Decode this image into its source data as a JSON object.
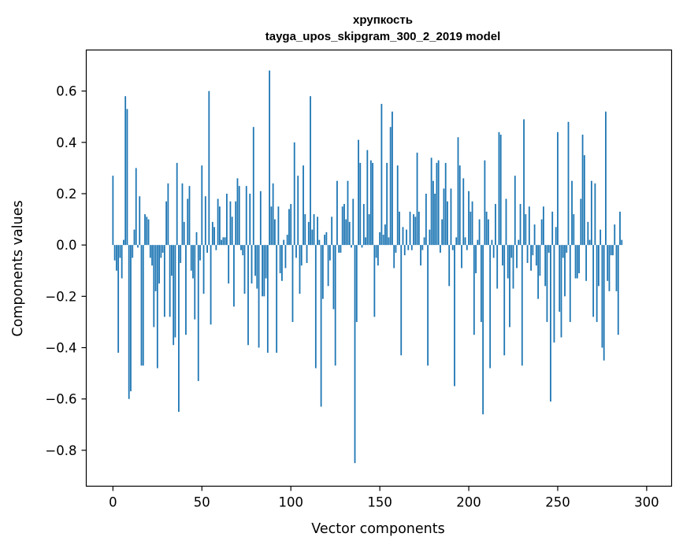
{
  "chart_data": {
    "type": "bar",
    "title": "хрупкость",
    "subtitle": "tayga_upos_skipgram_300_2_2019 model",
    "xlabel": "Vector components",
    "ylabel": "Components values",
    "xlim": [
      -15,
      314
    ],
    "ylim": [
      -0.94,
      0.76
    ],
    "xticks": [
      0,
      50,
      100,
      150,
      200,
      250,
      300
    ],
    "xtick_labels": [
      "0",
      "50",
      "100",
      "150",
      "200",
      "250",
      "300"
    ],
    "yticks": [
      -0.8,
      -0.6,
      -0.4,
      -0.2,
      0.0,
      0.2,
      0.4,
      0.6
    ],
    "ytick_labels": [
      "−0.8",
      "−0.6",
      "−0.4",
      "−0.2",
      "0.0",
      "0.2",
      "0.4",
      "0.6"
    ],
    "grid": false,
    "bar_color": "#1f77b4",
    "values": [
      0.27,
      -0.06,
      -0.1,
      -0.42,
      -0.05,
      -0.13,
      0.02,
      0.58,
      0.53,
      -0.6,
      -0.57,
      -0.05,
      0.06,
      0.3,
      -0.01,
      0.19,
      -0.47,
      -0.47,
      0.12,
      0.11,
      0.1,
      -0.05,
      -0.08,
      -0.32,
      -0.18,
      -0.48,
      -0.15,
      -0.05,
      -0.03,
      -0.28,
      0.17,
      0.24,
      -0.28,
      -0.12,
      -0.39,
      -0.36,
      0.32,
      -0.65,
      -0.07,
      0.24,
      0.09,
      -0.35,
      0.18,
      0.23,
      -0.1,
      -0.13,
      -0.29,
      0.05,
      -0.53,
      -0.06,
      0.31,
      -0.19,
      0.19,
      -0.03,
      0.6,
      -0.31,
      0.09,
      0.07,
      -0.02,
      0.18,
      0.15,
      0.02,
      0.03,
      0.03,
      0.2,
      -0.15,
      0.17,
      0.11,
      -0.24,
      0.17,
      0.26,
      0.23,
      -0.02,
      -0.04,
      -0.19,
      0.23,
      -0.39,
      0.2,
      -0.15,
      0.46,
      -0.12,
      -0.17,
      -0.4,
      0.21,
      -0.2,
      -0.2,
      -0.13,
      -0.42,
      0.68,
      0.15,
      0.24,
      0.1,
      -0.42,
      0.15,
      -0.11,
      -0.14,
      0.02,
      -0.09,
      0.04,
      0.14,
      0.16,
      -0.3,
      0.4,
      -0.05,
      0.27,
      -0.19,
      -0.08,
      0.31,
      0.12,
      -0.07,
      0.09,
      0.58,
      0.06,
      0.12,
      -0.48,
      0.11,
      0.02,
      -0.63,
      -0.21,
      0.04,
      0.05,
      -0.16,
      -0.06,
      0.11,
      -0.25,
      -0.47,
      0.25,
      -0.03,
      -0.03,
      0.15,
      0.16,
      0.1,
      0.25,
      0.09,
      -0.01,
      0.18,
      -0.85,
      -0.3,
      0.41,
      0.32,
      -0.01,
      0.16,
      0.03,
      0.37,
      0.12,
      0.33,
      0.32,
      -0.28,
      -0.05,
      -0.08,
      0.05,
      0.55,
      0.04,
      0.08,
      0.32,
      0.03,
      0.46,
      0.52,
      -0.09,
      -0.03,
      0.31,
      0.13,
      -0.43,
      0.07,
      -0.04,
      0.06,
      -0.02,
      0.13,
      -0.02,
      0.12,
      0.11,
      0.36,
      0.13,
      -0.08,
      -0.02,
      0.03,
      0.2,
      -0.47,
      0.06,
      0.34,
      0.25,
      0.2,
      0.32,
      0.33,
      -0.03,
      0.1,
      0.22,
      0.32,
      0.17,
      -0.16,
      0.22,
      -0.02,
      -0.55,
      0.03,
      0.42,
      0.31,
      -0.09,
      0.26,
      0.03,
      -0.02,
      0.21,
      0.13,
      0.17,
      -0.35,
      -0.11,
      0.02,
      0.1,
      -0.3,
      -0.66,
      0.33,
      0.13,
      0.1,
      -0.48,
      0.02,
      -0.05,
      0.16,
      -0.17,
      0.44,
      0.43,
      -0.08,
      -0.43,
      0.18,
      -0.13,
      -0.32,
      -0.05,
      -0.17,
      0.27,
      -0.09,
      0.02,
      0.16,
      -0.47,
      0.49,
      0.12,
      -0.07,
      0.15,
      -0.1,
      -0.04,
      0.08,
      -0.08,
      -0.21,
      -0.12,
      0.1,
      0.15,
      -0.16,
      -0.3,
      -0.03,
      -0.61,
      0.13,
      -0.38,
      0.07,
      0.44,
      -0.26,
      -0.36,
      -0.05,
      -0.2,
      -0.03,
      0.48,
      -0.3,
      0.25,
      0.12,
      -0.13,
      -0.13,
      -0.11,
      0.18,
      0.43,
      0.35,
      -0.14,
      0.09,
      0.02,
      0.25,
      -0.28,
      0.24,
      -0.3,
      -0.16,
      0.06,
      -0.4,
      -0.45,
      0.52,
      -0.14,
      -0.18,
      -0.04,
      -0.04,
      0.08,
      -0.18,
      -0.35,
      0.13,
      0.02
    ],
    "interpolated_values": []
  }
}
